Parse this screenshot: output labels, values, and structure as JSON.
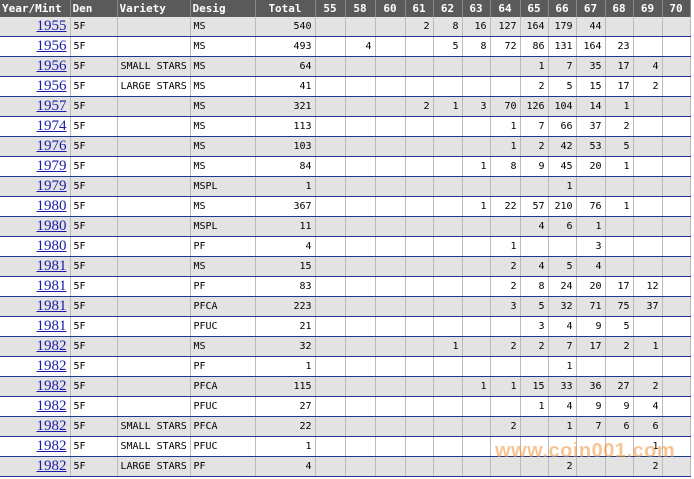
{
  "table": {
    "columns": [
      "Year/Mint",
      "Den",
      "Variety",
      "Desig",
      "Total",
      "55",
      "58",
      "60",
      "61",
      "62",
      "63",
      "64",
      "65",
      "66",
      "67",
      "68",
      "69",
      "70"
    ],
    "rows": [
      [
        "1955",
        "5F",
        null,
        "MS",
        540,
        null,
        null,
        null,
        2,
        8,
        16,
        127,
        164,
        179,
        44,
        null,
        null,
        null
      ],
      [
        "1956",
        "5F",
        null,
        "MS",
        493,
        null,
        4,
        null,
        null,
        5,
        8,
        72,
        86,
        131,
        164,
        23,
        null,
        null
      ],
      [
        "1956",
        "5F",
        "SMALL STARS",
        "MS",
        64,
        null,
        null,
        null,
        null,
        null,
        null,
        null,
        1,
        7,
        35,
        17,
        4,
        null
      ],
      [
        "1956",
        "5F",
        "LARGE STARS",
        "MS",
        41,
        null,
        null,
        null,
        null,
        null,
        null,
        null,
        2,
        5,
        15,
        17,
        2,
        null
      ],
      [
        "1957",
        "5F",
        null,
        "MS",
        321,
        null,
        null,
        null,
        2,
        1,
        3,
        70,
        126,
        104,
        14,
        1,
        null,
        null
      ],
      [
        "1974",
        "5F",
        null,
        "MS",
        113,
        null,
        null,
        null,
        null,
        null,
        null,
        1,
        7,
        66,
        37,
        2,
        null,
        null
      ],
      [
        "1976",
        "5F",
        null,
        "MS",
        103,
        null,
        null,
        null,
        null,
        null,
        null,
        1,
        2,
        42,
        53,
        5,
        null,
        null
      ],
      [
        "1979",
        "5F",
        null,
        "MS",
        84,
        null,
        null,
        null,
        null,
        null,
        1,
        8,
        9,
        45,
        20,
        1,
        null,
        null
      ],
      [
        "1979",
        "5F",
        null,
        "MSPL",
        1,
        null,
        null,
        null,
        null,
        null,
        null,
        null,
        null,
        1,
        null,
        null,
        null,
        null
      ],
      [
        "1980",
        "5F",
        null,
        "MS",
        367,
        null,
        null,
        null,
        null,
        null,
        1,
        22,
        57,
        210,
        76,
        1,
        null,
        null
      ],
      [
        "1980",
        "5F",
        null,
        "MSPL",
        11,
        null,
        null,
        null,
        null,
        null,
        null,
        null,
        4,
        6,
        1,
        null,
        null,
        null
      ],
      [
        "1980",
        "5F",
        null,
        "PF",
        4,
        null,
        null,
        null,
        null,
        null,
        null,
        1,
        null,
        null,
        3,
        null,
        null,
        null
      ],
      [
        "1981",
        "5F",
        null,
        "MS",
        15,
        null,
        null,
        null,
        null,
        null,
        null,
        2,
        4,
        5,
        4,
        null,
        null,
        null
      ],
      [
        "1981",
        "5F",
        null,
        "PF",
        83,
        null,
        null,
        null,
        null,
        null,
        null,
        2,
        8,
        24,
        20,
        17,
        12,
        null
      ],
      [
        "1981",
        "5F",
        null,
        "PFCA",
        223,
        null,
        null,
        null,
        null,
        null,
        null,
        3,
        5,
        32,
        71,
        75,
        37,
        null
      ],
      [
        "1981",
        "5F",
        null,
        "PFUC",
        21,
        null,
        null,
        null,
        null,
        null,
        null,
        null,
        3,
        4,
        9,
        5,
        null,
        null
      ],
      [
        "1982",
        "5F",
        null,
        "MS",
        32,
        null,
        null,
        null,
        null,
        1,
        null,
        2,
        2,
        7,
        17,
        2,
        1,
        null
      ],
      [
        "1982",
        "5F",
        null,
        "PF",
        1,
        null,
        null,
        null,
        null,
        null,
        null,
        null,
        null,
        1,
        null,
        null,
        null,
        null
      ],
      [
        "1982",
        "5F",
        null,
        "PFCA",
        115,
        null,
        null,
        null,
        null,
        null,
        1,
        1,
        15,
        33,
        36,
        27,
        2,
        null
      ],
      [
        "1982",
        "5F",
        null,
        "PFUC",
        27,
        null,
        null,
        null,
        null,
        null,
        null,
        null,
        1,
        4,
        9,
        9,
        4,
        null
      ],
      [
        "1982",
        "5F",
        "SMALL STARS",
        "PFCA",
        22,
        null,
        null,
        null,
        null,
        null,
        null,
        2,
        null,
        1,
        7,
        6,
        6,
        null
      ],
      [
        "1982",
        "5F",
        "SMALL STARS",
        "PFUC",
        1,
        null,
        null,
        null,
        null,
        null,
        null,
        null,
        null,
        null,
        null,
        null,
        1,
        null
      ],
      [
        "1982",
        "5F",
        "LARGE STARS",
        "PF",
        4,
        null,
        null,
        null,
        null,
        null,
        null,
        null,
        null,
        2,
        null,
        null,
        2,
        null
      ]
    ]
  },
  "watermark": "www.coin001.com"
}
